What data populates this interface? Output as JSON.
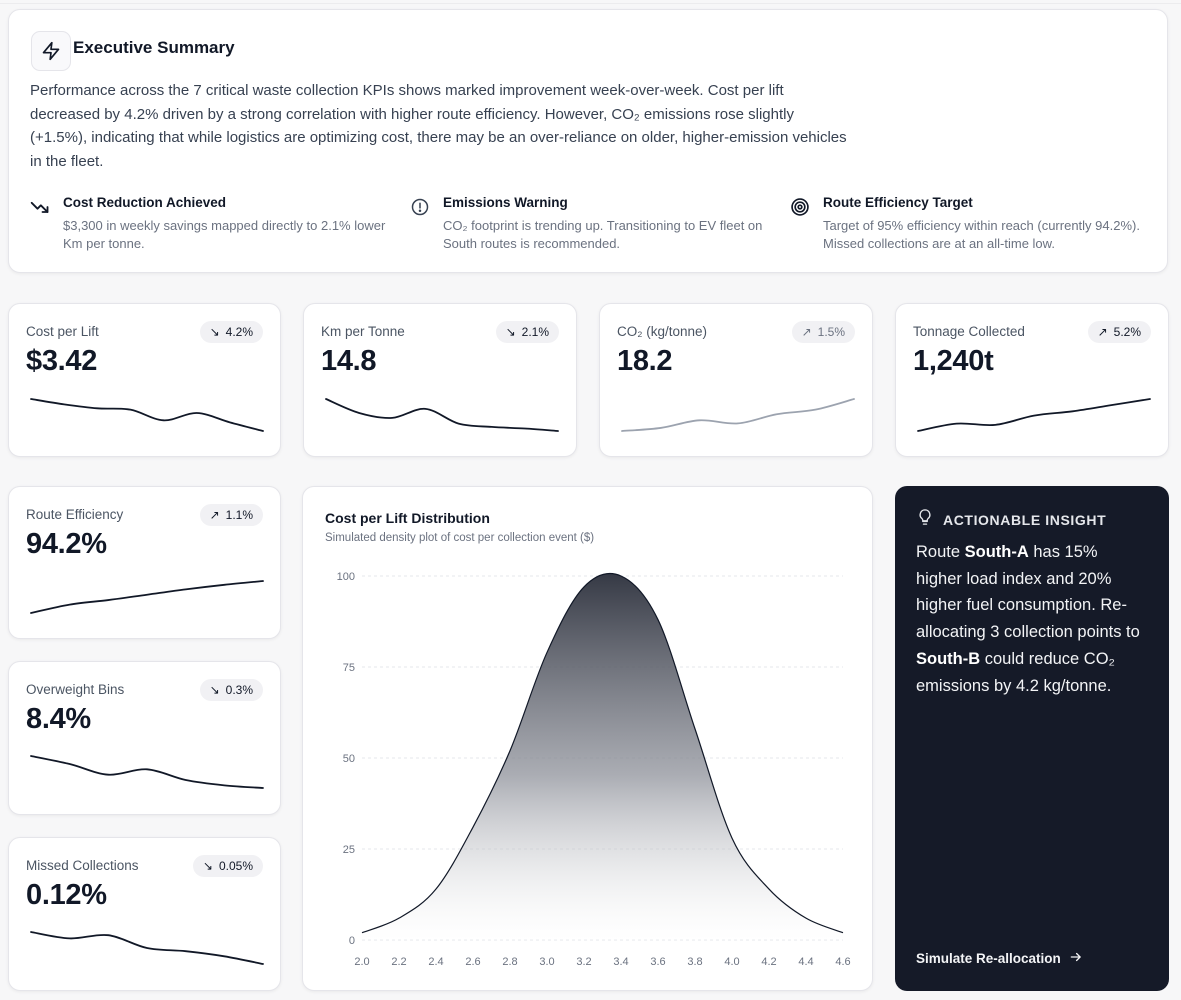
{
  "summary": {
    "title": "Executive Summary",
    "body": "Performance across the 7 critical waste collection KPIs shows marked improvement week-over-week. Cost per lift decreased by 4.2% driven by a strong correlation with higher route efficiency. However, CO₂ emissions rose slightly (+1.5%), indicating that while logistics are optimizing cost, there may be an over-reliance on older, higher-emission vehicles in the fleet.",
    "callouts": [
      {
        "icon": "trending-down-icon",
        "title": "Cost Reduction Achieved",
        "text": "$3,300 in weekly savings mapped directly to 2.1% lower Km per tonne."
      },
      {
        "icon": "alert-circle-icon",
        "title": "Emissions Warning",
        "text": "CO₂ footprint is trending up. Transitioning to EV fleet on South routes is recommended."
      },
      {
        "icon": "target-icon",
        "title": "Route Efficiency Target",
        "text": "Target of 95% efficiency within reach (currently 94.2%). Missed collections are at an all-time low."
      }
    ]
  },
  "kpis": [
    {
      "label": "Cost per Lift",
      "value": "$3.42",
      "change": "4.2%",
      "direction": "down",
      "spark": [
        30,
        29.2,
        28.6,
        28.4,
        26.8,
        27.9,
        26.5,
        25.2
      ],
      "spark_color": "#111827"
    },
    {
      "label": "Km per Tonne",
      "value": "14.8",
      "change": "2.1%",
      "direction": "down",
      "spark": [
        30,
        28.3,
        27.7,
        28.8,
        27.0,
        26.6,
        26.4,
        26.1
      ],
      "spark_color": "#111827"
    },
    {
      "label": "CO₂ (kg/tonne)",
      "value": "18.2",
      "change": "1.5%",
      "direction": "up",
      "spark": [
        16.1,
        16.3,
        16.8,
        16.6,
        17.2,
        17.5,
        18.2
      ],
      "spark_color": "#9ca3af",
      "muted": true
    },
    {
      "label": "Tonnage Collected",
      "value": "1,240t",
      "change": "5.2%",
      "direction": "up",
      "spark": [
        1180,
        1192,
        1190,
        1205,
        1212,
        1222,
        1232
      ],
      "spark_color": "#111827"
    },
    {
      "label": "Route Efficiency",
      "value": "94.2%",
      "change": "1.1%",
      "direction": "up",
      "spark": [
        90.0,
        91.1,
        91.7,
        92.4,
        93.1,
        93.7,
        94.2
      ],
      "spark_color": "#111827"
    },
    {
      "label": "Overweight Bins",
      "value": "8.4%",
      "change": "0.3%",
      "direction": "down",
      "spark": [
        9.6,
        9.3,
        8.9,
        9.1,
        8.7,
        8.5,
        8.4
      ],
      "spark_color": "#111827"
    },
    {
      "label": "Missed Collections",
      "value": "0.12%",
      "change": "0.05%",
      "direction": "down",
      "spark": [
        0.17,
        0.16,
        0.165,
        0.145,
        0.14,
        0.132,
        0.12
      ],
      "spark_color": "#111827"
    }
  ],
  "distribution": {
    "title": "Cost per Lift Distribution",
    "subtitle": "Simulated density plot of cost per collection event ($)"
  },
  "chart_data": {
    "type": "area",
    "title": "Cost per Lift Distribution",
    "subtitle": "Simulated density plot of cost per collection event ($)",
    "x": [
      2.0,
      2.2,
      2.4,
      2.6,
      2.8,
      3.0,
      3.2,
      3.4,
      3.6,
      3.8,
      4.0,
      4.2,
      4.4,
      4.6
    ],
    "y": [
      2,
      6,
      14,
      31,
      52,
      79,
      97,
      100,
      88,
      58,
      28,
      14,
      6,
      2
    ],
    "xlim": [
      2.0,
      4.6
    ],
    "ylim": [
      0,
      100
    ],
    "xticks": [
      "2.0",
      "2.2",
      "2.4",
      "2.6",
      "2.8",
      "3.0",
      "3.2",
      "3.4",
      "3.6",
      "3.8",
      "4.0",
      "4.2",
      "4.4",
      "4.6"
    ],
    "yticks": [
      "0",
      "25",
      "50",
      "75",
      "100"
    ],
    "grid": true,
    "xlabel": "",
    "ylabel": ""
  },
  "insight": {
    "heading": "ACTIONABLE INSIGHT",
    "body_parts": [
      "Route ",
      "South-A",
      " has 15% higher load index and 20% higher fuel consumption. Re-allocating 3 collection points to ",
      "South-B",
      " could reduce CO₂ emissions by 4.2 kg/tonne."
    ],
    "button": "Simulate Re-allocation"
  },
  "colors": {
    "accent_dark": "#151a28",
    "text": "#111827",
    "muted": "#6b7280"
  }
}
